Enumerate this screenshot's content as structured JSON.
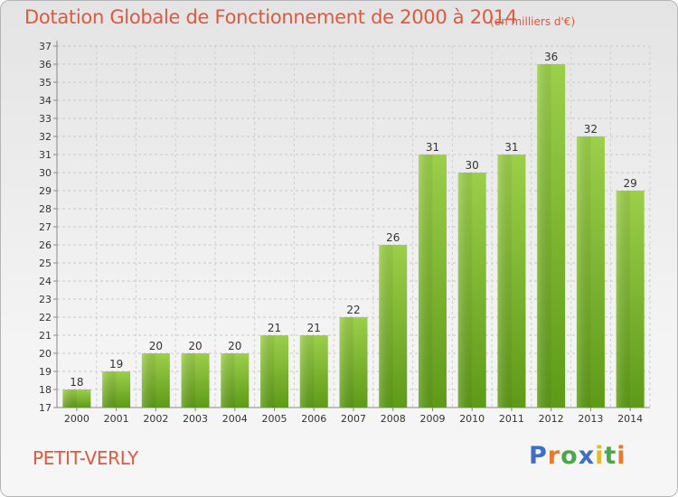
{
  "title": "Dotation Globale de Fonctionnement de 2000 à 2014",
  "subtitle": "(en milliers d'€)",
  "commune": "PETIT-VERLY",
  "logo": {
    "text": "Proxiti",
    "letters": [
      {
        "char": "P",
        "color": "#3f6fc4"
      },
      {
        "char": "r",
        "color": "#e97a2a"
      },
      {
        "char": "o",
        "color": "#4aa84a"
      },
      {
        "char": "x",
        "color": "#3f6fc4"
      },
      {
        "char": "i",
        "color": "#e0bd28"
      },
      {
        "char": "t",
        "color": "#4aa84a"
      },
      {
        "char": "i",
        "color": "#e97a2a"
      }
    ]
  },
  "chart_data": {
    "type": "bar",
    "categories": [
      "2000",
      "2001",
      "2002",
      "2003",
      "2004",
      "2005",
      "2006",
      "2007",
      "2008",
      "2009",
      "2010",
      "2011",
      "2012",
      "2013",
      "2014"
    ],
    "values": [
      18,
      19,
      20,
      20,
      20,
      21,
      21,
      22,
      26,
      31,
      30,
      31,
      36,
      32,
      29
    ],
    "ylim": [
      17,
      37
    ],
    "yticks": [
      17,
      18,
      19,
      20,
      21,
      22,
      23,
      24,
      25,
      26,
      27,
      28,
      29,
      30,
      31,
      32,
      33,
      34,
      35,
      36,
      37
    ],
    "grid": true,
    "bar_color": "#7dbb32"
  }
}
